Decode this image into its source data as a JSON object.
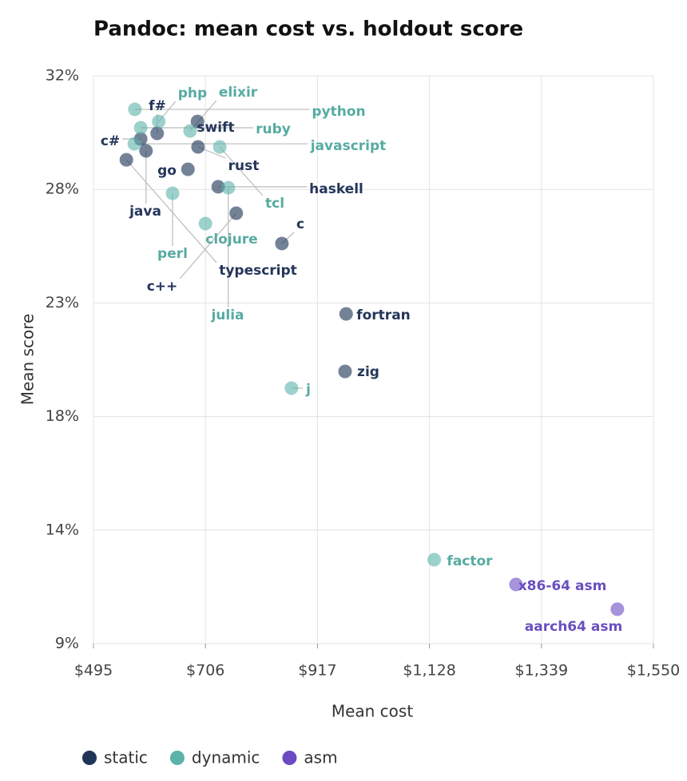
{
  "chart_data": {
    "type": "scatter",
    "title": "Pandoc: mean cost vs. holdout score",
    "x_label": "Mean cost",
    "y_label": "Mean score",
    "xlim": [
      495,
      1550
    ],
    "xticks": [
      {
        "value": 495,
        "label": "$495"
      },
      {
        "value": 706,
        "label": "$706"
      },
      {
        "value": 917,
        "label": "$917"
      },
      {
        "value": 1128,
        "label": "$1,128"
      },
      {
        "value": 1339,
        "label": "$1,339"
      },
      {
        "value": 1550,
        "label": "$1,550"
      }
    ],
    "ylim": [
      9,
      32.4
    ],
    "yticks": [
      {
        "value": 9,
        "label": "9%"
      },
      {
        "value": 13.68,
        "label": "14%"
      },
      {
        "value": 18.36,
        "label": "18%"
      },
      {
        "value": 23.04,
        "label": "23%"
      },
      {
        "value": 27.72,
        "label": "28%"
      },
      {
        "value": 32.4,
        "label": "32%"
      }
    ],
    "grid": true,
    "legend": "bottom-left",
    "series": [
      {
        "name": "static",
        "color": "#1f3558",
        "labels": [
          "f#",
          "c#",
          "java",
          "swift",
          "rust",
          "typescript",
          "go",
          "haskell",
          "c++",
          "c",
          "fortran",
          "zig"
        ],
        "x": [
          615,
          584,
          594,
          691,
          692,
          557,
          673,
          730,
          764,
          850,
          971,
          969
        ],
        "values": [
          30.03,
          29.8,
          29.31,
          30.52,
          29.47,
          28.94,
          28.55,
          27.83,
          26.74,
          25.49,
          22.59,
          20.22
        ]
      },
      {
        "name": "dynamic",
        "color": "#5bb3aa",
        "labels": [
          "php",
          "elixir",
          "python",
          "ruby",
          "javascript",
          "tcl",
          "julia",
          "perl",
          "clojure",
          "j",
          "factor"
        ],
        "x": [
          618,
          677,
          573,
          584,
          572,
          733,
          749,
          644,
          706,
          868,
          1137
        ],
        "values": [
          30.52,
          30.13,
          31.02,
          30.26,
          29.6,
          29.47,
          27.79,
          27.56,
          26.31,
          19.53,
          12.46
        ]
      },
      {
        "name": "asm",
        "color": "#6b4bc4",
        "labels": [
          "x86-64 asm",
          "aarch64 asm"
        ],
        "x": [
          1291,
          1482
        ],
        "values": [
          11.44,
          10.42
        ]
      }
    ]
  }
}
